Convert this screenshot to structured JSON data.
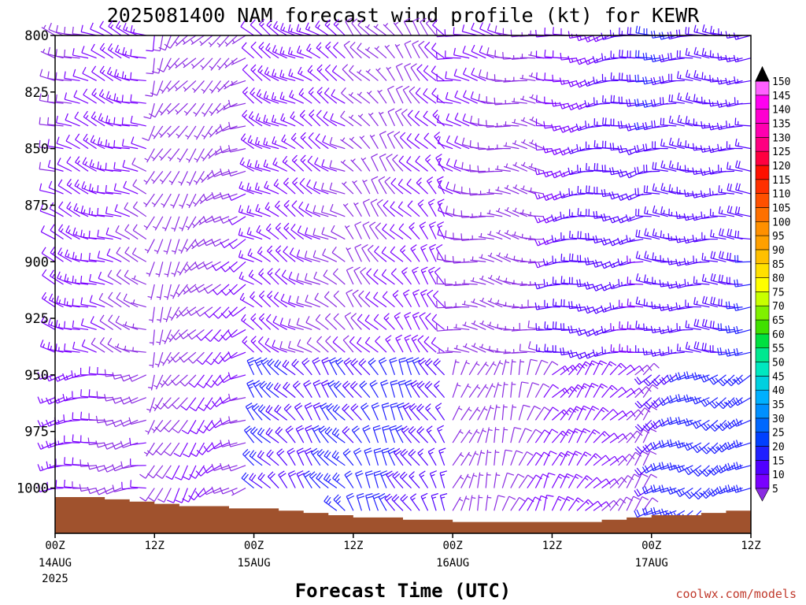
{
  "chart_data": {
    "type": "wind_barb_profile",
    "title": "2025081400 NAM forecast wind profile (kt) for KEWR",
    "xlabel": "Forecast Time (UTC)",
    "credit": "coolwx.com/models",
    "y_axis": {
      "label": "",
      "ticks": [
        "800",
        "825",
        "850",
        "875",
        "900",
        "925",
        "950",
        "975",
        "1000"
      ],
      "range": [
        800,
        1020
      ],
      "inverted": true
    },
    "x_axis": {
      "range_hours": [
        0,
        84
      ],
      "ticks": [
        {
          "hour": 0,
          "label": "00Z",
          "date": "14AUG",
          "year": "2025"
        },
        {
          "hour": 12,
          "label": "12Z",
          "date": "",
          "year": ""
        },
        {
          "hour": 24,
          "label": "00Z",
          "date": "15AUG",
          "year": ""
        },
        {
          "hour": 36,
          "label": "12Z",
          "date": "",
          "year": ""
        },
        {
          "hour": 48,
          "label": "00Z",
          "date": "16AUG",
          "year": ""
        },
        {
          "hour": 60,
          "label": "12Z",
          "date": "",
          "year": ""
        },
        {
          "hour": 72,
          "label": "00Z",
          "date": "17AUG",
          "year": ""
        },
        {
          "hour": 84,
          "label": "12Z",
          "date": "",
          "year": ""
        }
      ]
    },
    "surface_pressure": [
      [
        0,
        1004
      ],
      [
        3,
        1004
      ],
      [
        6,
        1005
      ],
      [
        9,
        1006
      ],
      [
        12,
        1007
      ],
      [
        15,
        1008
      ],
      [
        18,
        1008
      ],
      [
        21,
        1009
      ],
      [
        24,
        1009
      ],
      [
        27,
        1010
      ],
      [
        30,
        1011
      ],
      [
        33,
        1012
      ],
      [
        36,
        1013
      ],
      [
        39,
        1013
      ],
      [
        42,
        1014
      ],
      [
        45,
        1014
      ],
      [
        48,
        1015
      ],
      [
        51,
        1015
      ],
      [
        54,
        1015
      ],
      [
        57,
        1015
      ],
      [
        60,
        1015
      ],
      [
        63,
        1015
      ],
      [
        66,
        1014
      ],
      [
        69,
        1013
      ],
      [
        72,
        1012
      ],
      [
        75,
        1012
      ],
      [
        78,
        1011
      ],
      [
        81,
        1010
      ],
      [
        84,
        1010
      ]
    ],
    "colorbar": {
      "levels": [
        5,
        10,
        15,
        20,
        25,
        30,
        35,
        40,
        45,
        50,
        55,
        60,
        65,
        70,
        75,
        80,
        85,
        90,
        95,
        100,
        105,
        110,
        115,
        120,
        125,
        130,
        135,
        140,
        145,
        150
      ],
      "colors": [
        "#8a2be2",
        "#7a00ff",
        "#5000ff",
        "#2020ff",
        "#0040ff",
        "#0068ff",
        "#0090ff",
        "#00b0ff",
        "#00d0e0",
        "#00e8c0",
        "#00e890",
        "#00e040",
        "#40e000",
        "#80f000",
        "#c8ff00",
        "#ffff00",
        "#ffe000",
        "#ffc000",
        "#ffa000",
        "#ff9000",
        "#ff7000",
        "#ff5000",
        "#ff3000",
        "#ff1000",
        "#ff0040",
        "#ff0080",
        "#ff00b0",
        "#ff00d0",
        "#ff00f0",
        "#ff60ff"
      ]
    },
    "barb_grid": {
      "levels_hpa": [
        800,
        810,
        820,
        830,
        840,
        850,
        860,
        870,
        880,
        890,
        900,
        910,
        920,
        930,
        940,
        950,
        960,
        970,
        980,
        990,
        1000,
        1010
      ],
      "hours_step": 1,
      "description_units": "kt"
    }
  }
}
